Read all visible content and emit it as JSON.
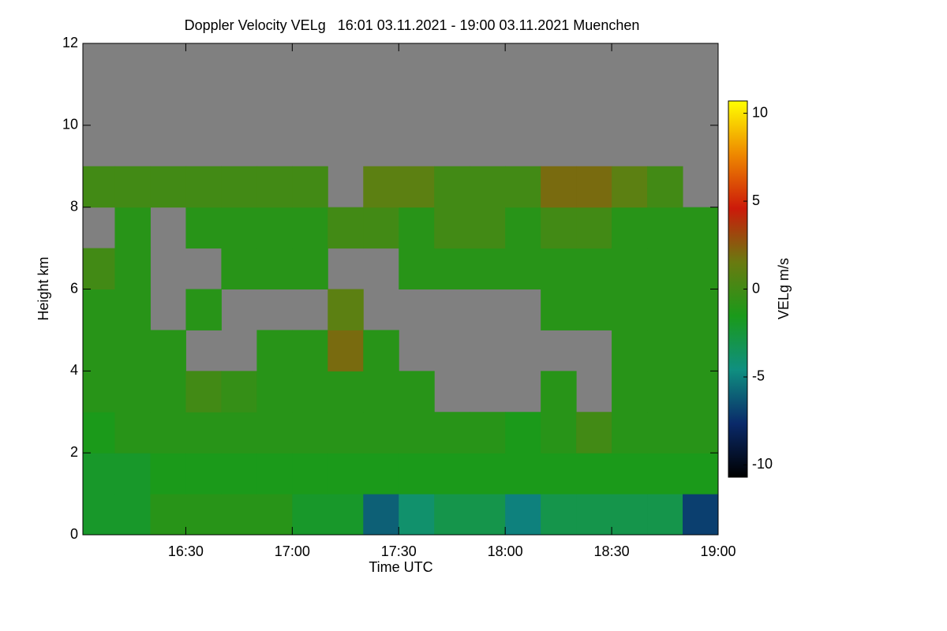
{
  "chart_data": {
    "type": "heatmap",
    "title": "Doppler Velocity VELg   16:01 03.11.2021 - 19:00 03.11.2021 Muenchen",
    "x_label": "Time UTC",
    "y_label": "Height km",
    "colorbar_label": "VELg m/s",
    "xlim": [
      961,
      1140
    ],
    "xticks": [
      {
        "value": 990,
        "label": "16:30"
      },
      {
        "value": 1020,
        "label": "17:00"
      },
      {
        "value": 1050,
        "label": "17:30"
      },
      {
        "value": 1080,
        "label": "18:00"
      },
      {
        "value": 1110,
        "label": "18:30"
      },
      {
        "value": 1140,
        "label": "19:00"
      }
    ],
    "ylim": [
      0,
      12
    ],
    "yticks": [
      0,
      2,
      4,
      6,
      8,
      10,
      12
    ],
    "zlim": [
      -10.7,
      10.7
    ],
    "zticks": [
      -10,
      -5,
      0,
      5,
      10
    ],
    "colormap": [
      "#000000",
      "#0a2a6a",
      "#0f8f80",
      "#1a9a1a",
      "#6a7a10",
      "#cc1a0a",
      "#ee8800",
      "#ffff00"
    ],
    "nodata_color": "#808080",
    "x_bins": [
      961,
      970,
      980,
      990,
      1000,
      1010,
      1020,
      1030,
      1040,
      1050,
      1060,
      1070,
      1080,
      1090,
      1100,
      1110,
      1120,
      1130,
      1140
    ],
    "y_bins": [
      0,
      1,
      2,
      3,
      4,
      5,
      6,
      7,
      8,
      9,
      10,
      11,
      12
    ],
    "z": [
      [
        -2,
        -2,
        -1,
        -1,
        -1,
        -1,
        -2,
        -2,
        -6,
        -4,
        -3,
        -3,
        -5,
        -3,
        -3,
        -3,
        -3,
        -7
      ],
      [
        -2,
        -2,
        -1.5,
        -1.5,
        -1.5,
        -1.5,
        -1.5,
        -1.5,
        -1.5,
        -1.5,
        -1.5,
        -1.5,
        -1.5,
        -1.5,
        -1.5,
        -1.5,
        -1.5,
        -1.5
      ],
      [
        -1.5,
        -1,
        -1,
        -1,
        -1,
        -1,
        -1,
        -1,
        -1,
        -1,
        -1,
        -1,
        -1.5,
        -1,
        0,
        -1,
        -1,
        -1
      ],
      [
        -1,
        -1,
        -1,
        0,
        -0.5,
        -1,
        -1,
        -1,
        -1,
        -1,
        null,
        null,
        null,
        -1,
        null,
        -1,
        -1,
        -1
      ],
      [
        -1,
        -1,
        -1,
        null,
        null,
        -1,
        -1,
        2,
        -1,
        null,
        null,
        null,
        null,
        null,
        null,
        -1,
        -1,
        -1
      ],
      [
        -1,
        -1,
        null,
        -1,
        null,
        null,
        null,
        1,
        null,
        null,
        null,
        null,
        null,
        -1,
        -1,
        -1,
        -1,
        -1
      ],
      [
        0,
        -1,
        null,
        null,
        -1,
        -1,
        -1,
        null,
        null,
        -1,
        -1,
        -1,
        -1,
        -1,
        -1,
        -1,
        -1,
        -1
      ],
      [
        null,
        -1,
        null,
        -1,
        -1,
        -1,
        -1,
        0,
        0,
        -1,
        0,
        0,
        -1,
        0,
        0,
        -1,
        -1,
        -1
      ],
      [
        0,
        0,
        0,
        0,
        0,
        0,
        0,
        null,
        1,
        1,
        0,
        0,
        0,
        2,
        2,
        1,
        0,
        null
      ],
      [
        null,
        null,
        null,
        null,
        null,
        null,
        null,
        null,
        null,
        null,
        null,
        null,
        null,
        null,
        null,
        null,
        null,
        null
      ],
      [
        null,
        null,
        null,
        null,
        null,
        null,
        null,
        null,
        null,
        null,
        null,
        null,
        null,
        null,
        null,
        null,
        null,
        null
      ],
      [
        null,
        null,
        null,
        null,
        null,
        null,
        null,
        null,
        null,
        null,
        null,
        null,
        null,
        null,
        null,
        null,
        null,
        null
      ]
    ]
  }
}
